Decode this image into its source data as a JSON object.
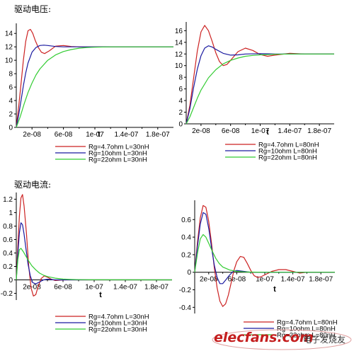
{
  "sections": {
    "voltage_title": "驱动电压:",
    "current_title": "驱动电流:"
  },
  "watermark": {
    "brand": "elecfans.com",
    "suffix": "电子发烧友"
  },
  "colors": {
    "red": "#cc2222",
    "blue": "#1a1aa0",
    "green": "#33cc33",
    "axis": "#000000"
  },
  "chart_data": [
    {
      "id": "voltage-30nH",
      "type": "line",
      "xlabel": "t",
      "ylabel": "",
      "xlim": [
        0,
        2e-07
      ],
      "ylim": [
        0,
        15.5
      ],
      "x_ticks": [
        2e-08,
        6e-08,
        1e-07,
        1.4e-07,
        1.8e-07
      ],
      "x_tick_labels": [
        "2e-08",
        "6e-08",
        "1e-07",
        "1.4e-07",
        "1.8e-07"
      ],
      "y_ticks": [
        0,
        2,
        4,
        6,
        8,
        10,
        12,
        14
      ],
      "y_tick_labels": [
        "0",
        "2",
        "4",
        "6",
        "8",
        "10",
        "12",
        "14"
      ],
      "legend": [
        "Rg=4.7ohm  L=30nH",
        "Rg=10ohm  L=30nH",
        "Rg=22ohm  L=30nH"
      ],
      "series": [
        {
          "name": "Rg=4.7ohm  L=30nH",
          "color": "red",
          "x": [
            0,
            3e-09,
            6e-09,
            9e-09,
            1.2e-08,
            1.5e-08,
            1.8e-08,
            2.1e-08,
            2.4e-08,
            2.8e-08,
            3.2e-08,
            3.6e-08,
            4.2e-08,
            5e-08,
            6e-08,
            7e-08,
            8e-08,
            1e-07,
            1.2e-07,
            2e-07
          ],
          "y": [
            0,
            3.0,
            6.5,
            10.0,
            12.8,
            14.4,
            14.6,
            14.0,
            13.0,
            11.9,
            11.2,
            11.0,
            11.4,
            12.1,
            12.2,
            12.05,
            12.0,
            12.0,
            12.0,
            12.0
          ]
        },
        {
          "name": "Rg=10ohm  L=30nH",
          "color": "blue",
          "x": [
            0,
            3e-09,
            6e-09,
            9e-09,
            1.2e-08,
            1.5e-08,
            2e-08,
            2.5e-08,
            3e-08,
            3.5e-08,
            4e-08,
            5e-08,
            6e-08,
            8e-08,
            1e-07,
            2e-07
          ],
          "y": [
            0,
            1.8,
            4.0,
            6.2,
            8.1,
            9.6,
            11.2,
            11.9,
            12.2,
            12.25,
            12.2,
            12.05,
            12.0,
            12.0,
            12.0,
            12.0
          ]
        },
        {
          "name": "Rg=22ohm  L=30nH",
          "color": "green",
          "x": [
            0,
            5e-09,
            1e-08,
            1.5e-08,
            2e-08,
            2.5e-08,
            3e-08,
            4e-08,
            5e-08,
            6e-08,
            7e-08,
            8e-08,
            9e-08,
            1e-07,
            1.2e-07,
            2e-07
          ],
          "y": [
            0,
            1.6,
            3.5,
            5.2,
            6.6,
            7.8,
            8.7,
            10.0,
            10.8,
            11.3,
            11.6,
            11.8,
            11.9,
            11.95,
            12.0,
            12.0
          ]
        }
      ]
    },
    {
      "id": "voltage-80nH",
      "type": "line",
      "xlabel": "t",
      "ylabel": "",
      "xlim": [
        0,
        2e-07
      ],
      "ylim": [
        0,
        17.5
      ],
      "x_ticks": [
        2e-08,
        6e-08,
        1e-07,
        1.4e-07,
        1.8e-07
      ],
      "x_tick_labels": [
        "2e-08",
        "6e-08",
        "1e-07",
        "1.4e-07",
        "1.8e-07"
      ],
      "y_ticks": [
        0,
        2,
        4,
        6,
        8,
        10,
        12,
        14,
        16
      ],
      "y_tick_labels": [
        "0",
        "2",
        "4",
        "6",
        "8",
        "10",
        "12",
        "14",
        "16"
      ],
      "legend": [
        "Rg=4.7ohm  L=80nH",
        "Rg=10ohm  L=80nH",
        "Rg=22ohm  L=80nH"
      ],
      "series": [
        {
          "name": "Rg=4.7ohm  L=80nH",
          "color": "red",
          "x": [
            0,
            5e-09,
            1e-08,
            1.5e-08,
            2e-08,
            2.5e-08,
            3e-08,
            3.5e-08,
            4e-08,
            4.5e-08,
            5e-08,
            5.5e-08,
            6e-08,
            7e-08,
            8e-08,
            9e-08,
            1e-07,
            1.1e-07,
            1.2e-07,
            1.4e-07,
            1.6e-07,
            2e-07
          ],
          "y": [
            0,
            3.2,
            7.8,
            12.5,
            15.8,
            16.9,
            16.0,
            14.2,
            12.2,
            10.7,
            10.0,
            10.2,
            10.9,
            12.4,
            13.0,
            12.6,
            11.9,
            11.6,
            11.8,
            12.1,
            12.0,
            12.0
          ]
        },
        {
          "name": "Rg=10ohm  L=80nH",
          "color": "blue",
          "x": [
            0,
            5e-09,
            1e-08,
            1.5e-08,
            2e-08,
            2.5e-08,
            3e-08,
            3.5e-08,
            4e-08,
            5e-08,
            6e-08,
            7e-08,
            8e-08,
            1e-07,
            1.2e-07,
            2e-07
          ],
          "y": [
            0,
            2.6,
            6.2,
            9.4,
            11.7,
            13.0,
            13.4,
            13.2,
            12.8,
            12.1,
            11.8,
            11.85,
            12.0,
            12.05,
            12.0,
            12.0
          ]
        },
        {
          "name": "Rg=22ohm  L=80nH",
          "color": "green",
          "x": [
            0,
            5e-09,
            1e-08,
            1.5e-08,
            2e-08,
            3e-08,
            4e-08,
            5e-08,
            6e-08,
            7e-08,
            8e-08,
            9e-08,
            1e-07,
            1.2e-07,
            1.4e-07,
            2e-07
          ],
          "y": [
            0,
            1.2,
            2.8,
            4.4,
            5.8,
            7.9,
            9.3,
            10.3,
            10.9,
            11.3,
            11.6,
            11.75,
            11.85,
            11.95,
            12.0,
            12.0
          ]
        }
      ]
    },
    {
      "id": "current-30nH",
      "type": "line",
      "xlabel": "t",
      "ylabel": "",
      "xlim": [
        0,
        2e-07
      ],
      "ylim": [
        -0.3,
        1.3
      ],
      "x_ticks": [
        2e-08,
        6e-08,
        1e-07,
        1.4e-07,
        1.8e-07
      ],
      "x_tick_labels": [
        "2e-08",
        "6e-08",
        "1e-07",
        "1.4e-07",
        "1.8e-07"
      ],
      "y_ticks": [
        -0.2,
        0,
        0.2,
        0.4,
        0.6,
        0.8,
        1,
        1.2
      ],
      "y_tick_labels": [
        "-0.2",
        "0",
        "0.2",
        "0.4",
        "0.6",
        "0.8",
        "1",
        "1.2"
      ],
      "legend": [
        "Rg=4.7ohm  L=30nH",
        "Rg=10ohm  L=30nH",
        "Rg=22ohm  L=30nH"
      ],
      "series": [
        {
          "name": "Rg=4.7ohm  L=30nH",
          "color": "red",
          "x": [
            0,
            2e-09,
            4e-09,
            6e-09,
            8e-09,
            1e-08,
            1.3e-08,
            1.6e-08,
            1.9e-08,
            2.2e-08,
            2.5e-08,
            2.8e-08,
            3.2e-08,
            3.6e-08,
            4e-08,
            4.5e-08,
            5e-08,
            6e-08,
            2e-07
          ],
          "y": [
            0,
            0.5,
            0.95,
            1.22,
            1.27,
            1.1,
            0.7,
            0.2,
            -0.12,
            -0.24,
            -0.22,
            -0.1,
            0.02,
            0.06,
            0.04,
            0.01,
            -0.01,
            0,
            0
          ]
        },
        {
          "name": "Rg=10ohm  L=30nH",
          "color": "blue",
          "x": [
            0,
            2e-09,
            4e-09,
            6e-09,
            8e-09,
            1e-08,
            1.2e-08,
            1.5e-08,
            1.8e-08,
            2.1e-08,
            2.5e-08,
            3e-08,
            3.5e-08,
            4e-08,
            5e-08,
            2e-07
          ],
          "y": [
            0,
            0.38,
            0.7,
            0.85,
            0.82,
            0.68,
            0.5,
            0.24,
            0.06,
            -0.04,
            -0.06,
            -0.03,
            0.0,
            0.01,
            0,
            0
          ]
        },
        {
          "name": "Rg=22ohm  L=30nH",
          "color": "green",
          "x": [
            0,
            2e-09,
            4e-09,
            6e-09,
            9e-09,
            1.2e-08,
            1.6e-08,
            2e-08,
            2.5e-08,
            3e-08,
            3.5e-08,
            4e-08,
            5e-08,
            6e-08,
            7e-08,
            8e-08,
            1e-07,
            2e-07
          ],
          "y": [
            0,
            0.3,
            0.45,
            0.47,
            0.42,
            0.36,
            0.28,
            0.21,
            0.15,
            0.1,
            0.07,
            0.05,
            0.025,
            0.012,
            0.006,
            0.003,
            0.001,
            0
          ]
        }
      ]
    },
    {
      "id": "current-80nH",
      "type": "line",
      "xlabel": "t",
      "ylabel": "",
      "xlim": [
        0,
        2e-07
      ],
      "ylim": [
        -0.47,
        0.82
      ],
      "x_ticks": [
        2e-08,
        6e-08,
        1e-07,
        1.4e-07,
        1.8e-07
      ],
      "x_tick_labels": [
        "2e-08",
        "6e-08",
        "1e-07",
        "1.4e-07",
        "1.8e-07"
      ],
      "y_ticks": [
        -0.4,
        -0.2,
        0,
        0.2,
        0.4,
        0.6
      ],
      "y_tick_labels": [
        "-0.4",
        "-0.2",
        "0",
        "0.2",
        "0.4",
        "0.6"
      ],
      "legend": [
        "Rg=4.7ohm  L=80nH",
        "Rg=10ohm  L=80nH",
        "Rg=22ohm  L=80nH"
      ],
      "series": [
        {
          "name": "Rg=4.7ohm  L=80nH",
          "color": "red",
          "x": [
            0,
            4e-09,
            8e-09,
            1.2e-08,
            1.6e-08,
            2e-08,
            2.4e-08,
            2.8e-08,
            3.2e-08,
            3.6e-08,
            4e-08,
            4.4e-08,
            4.8e-08,
            5.2e-08,
            5.6e-08,
            6e-08,
            6.5e-08,
            7e-08,
            7.5e-08,
            8e-08,
            8.5e-08,
            9e-08,
            9.5e-08,
            1e-07,
            1.1e-07,
            1.2e-07,
            1.3e-07,
            1.4e-07,
            1.5e-07,
            1.6e-07,
            2e-07
          ],
          "y": [
            0,
            0.35,
            0.62,
            0.76,
            0.74,
            0.58,
            0.33,
            0.05,
            -0.18,
            -0.33,
            -0.39,
            -0.36,
            -0.26,
            -0.12,
            0.02,
            0.12,
            0.18,
            0.17,
            0.1,
            0.02,
            -0.04,
            -0.06,
            -0.05,
            -0.03,
            0.01,
            0.03,
            0.03,
            0.01,
            -0.01,
            0,
            0
          ]
        },
        {
          "name": "Rg=10ohm  L=80nH",
          "color": "blue",
          "x": [
            0,
            4e-09,
            8e-09,
            1.2e-08,
            1.6e-08,
            2e-08,
            2.4e-08,
            2.8e-08,
            3.2e-08,
            3.6e-08,
            4e-08,
            4.5e-08,
            5e-08,
            5.5e-08,
            6e-08,
            7e-08,
            8e-08,
            2e-07
          ],
          "y": [
            0,
            0.3,
            0.55,
            0.68,
            0.66,
            0.5,
            0.28,
            0.08,
            -0.06,
            -0.13,
            -0.13,
            -0.08,
            -0.03,
            0.01,
            0.02,
            0.01,
            0,
            0
          ]
        },
        {
          "name": "Rg=22ohm  L=80nH",
          "color": "green",
          "x": [
            0,
            4e-09,
            8e-09,
            1.2e-08,
            1.6e-08,
            2e-08,
            2.5e-08,
            3e-08,
            3.5e-08,
            4e-08,
            5e-08,
            6e-08,
            7e-08,
            8e-08,
            1e-07,
            2e-07
          ],
          "y": [
            0,
            0.22,
            0.38,
            0.43,
            0.4,
            0.33,
            0.24,
            0.16,
            0.1,
            0.06,
            0.025,
            0.01,
            0.004,
            0.002,
            0,
            0
          ]
        }
      ]
    }
  ]
}
